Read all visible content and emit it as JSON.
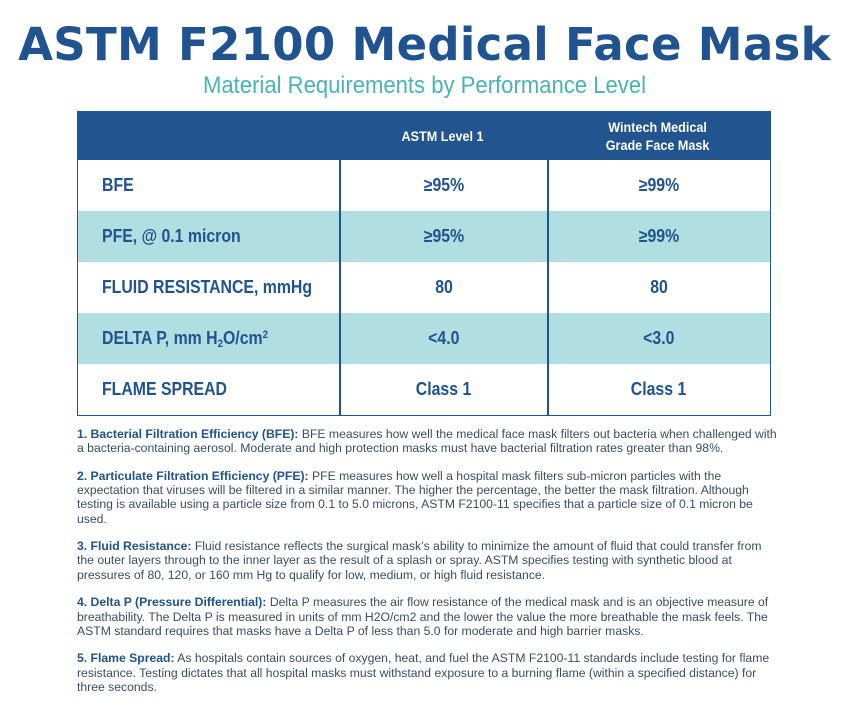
{
  "header": {
    "title": "ASTM F2100 Medical Face Mask",
    "subtitle": "Material Requirements by Performance Level"
  },
  "colors": {
    "primary_blue": "#22548f",
    "teal_subtitle": "#4bb3b5",
    "alt_row": "#b1dfe1"
  },
  "table": {
    "columns": [
      "",
      "ASTM Level 1",
      "Wintech Medical",
      "Grade Face Mask"
    ],
    "col_headers": {
      "c1": "ASTM Level 1",
      "c2_line1": "Wintech Medical",
      "c2_line2": "Grade Face Mask"
    },
    "rows": [
      {
        "label": "BFE",
        "astm": "≥95%",
        "wintech": "≥99%"
      },
      {
        "label": "PFE, @ 0.1 micron",
        "astm": "≥95%",
        "wintech": "≥99%"
      },
      {
        "label": "FLUID RESISTANCE, mmHg",
        "astm": "80",
        "wintech": "80"
      },
      {
        "label_pre": "DELTA P, mm H",
        "label_sub": "2",
        "label_mid": "O/cm",
        "label_sup": "2",
        "astm": "<4.0",
        "wintech": "<3.0"
      },
      {
        "label": "FLAME SPREAD",
        "astm": "Class 1",
        "wintech": "Class 1"
      }
    ]
  },
  "notes": [
    {
      "heading": "1. Bacterial Filtration Efficiency (BFE):",
      "text": " BFE measures how well the medical face mask filters out bacteria when challenged with a bacteria-containing aerosol. Moderate and high protection masks must have bacterial filtration rates greater than 98%."
    },
    {
      "heading": "2. Particulate Filtration Efficiency (PFE):",
      "text": " PFE measures how well a hospital mask filters sub-micron particles with the expectation that viruses will be filtered in a similar manner. The higher the percentage, the better the mask filtration. Although testing is available using a particle size from 0.1 to 5.0 microns, ASTM F2100-11 specifies that a particle size of 0.1 micron be used."
    },
    {
      "heading": "3. Fluid Resistance:",
      "text": " Fluid resistance reflects the surgical mask’s ability to minimize the amount of fluid that could transfer from the outer layers through to the inner layer as the result of a splash or spray. ASTM specifies testing with synthetic blood at pressures of 80, 120, or 160 mm Hg to qualify for low, medium, or high fluid resistance."
    },
    {
      "heading": "4. Delta P (Pressure Differential):",
      "text": " Delta P measures the air flow resistance of the medical mask and is an objective measure of breathability. The Delta P is measured in units of mm H2O/cm2 and the lower the value the more breathable the mask feels. The ASTM standard requires that masks have a Delta P of less than 5.0 for moderate and high barrier masks."
    },
    {
      "heading": "5. Flame Spread:",
      "text": " As hospitals contain sources of oxygen, heat, and fuel the ASTM F2100-11 standards include testing for flame resistance. Testing dictates that all hospital masks must withstand exposure to a burning flame (within a specified distance) for three seconds."
    }
  ]
}
